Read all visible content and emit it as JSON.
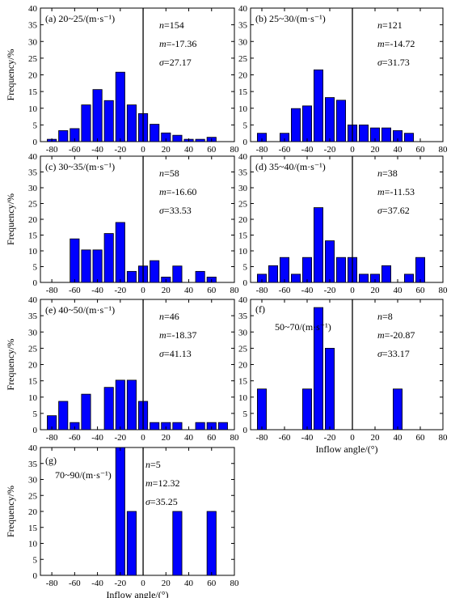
{
  "chart_data": [
    {
      "panel": "a",
      "type": "bar",
      "title": "(a) 20~25/(m·s⁻¹)",
      "stats": {
        "n": "154",
        "m": "-17.36",
        "sigma": "27.17"
      },
      "x": [
        -80,
        -70,
        -60,
        -50,
        -40,
        -30,
        -20,
        -10,
        0,
        10,
        20,
        30,
        40,
        50,
        60
      ],
      "values": [
        0.7,
        3.3,
        3.9,
        11.0,
        15.6,
        12.3,
        20.8,
        11.0,
        8.4,
        5.2,
        2.6,
        1.9,
        0.7,
        0.7,
        1.3
      ],
      "ylabel": "Frequency/%",
      "xlabel": "",
      "xlim": [
        -90,
        80
      ],
      "ylim": [
        0,
        40
      ],
      "xticks": [
        -80,
        -60,
        -40,
        -20,
        0,
        20,
        40,
        60,
        80
      ],
      "yticks": [
        0,
        5,
        10,
        15,
        20,
        25,
        30,
        35,
        40
      ]
    },
    {
      "panel": "b",
      "type": "bar",
      "title": "(b) 25~30/(m·s⁻¹)",
      "stats": {
        "n": "121",
        "m": "-14.72",
        "sigma": "31.73"
      },
      "x": [
        -80,
        -60,
        -50,
        -40,
        -30,
        -20,
        -10,
        0,
        10,
        20,
        30,
        40,
        50
      ],
      "values": [
        2.5,
        2.5,
        9.9,
        10.7,
        21.5,
        13.2,
        12.4,
        5.0,
        5.0,
        4.1,
        4.1,
        3.3,
        2.5
      ],
      "ylabel": "",
      "xlabel": "",
      "xlim": [
        -90,
        80
      ],
      "ylim": [
        0,
        40
      ],
      "xticks": [
        -80,
        -60,
        -40,
        -20,
        0,
        20,
        40,
        60,
        80
      ],
      "yticks": [
        0,
        5,
        10,
        15,
        20,
        25,
        30,
        35,
        40
      ]
    },
    {
      "panel": "c",
      "type": "bar",
      "title": "(c) 30~35/(m·s⁻¹)",
      "stats": {
        "n": "58",
        "m": "-16.60",
        "sigma": "33.53"
      },
      "x": [
        -60,
        -50,
        -40,
        -30,
        -20,
        -10,
        0,
        10,
        20,
        30,
        50,
        60
      ],
      "values": [
        13.8,
        10.3,
        10.3,
        15.5,
        19.0,
        3.5,
        5.2,
        6.9,
        1.7,
        5.2,
        3.5,
        1.7
      ],
      "ylabel": "Frequency/%",
      "xlabel": "",
      "xlim": [
        -90,
        80
      ],
      "ylim": [
        0,
        40
      ],
      "xticks": [
        -80,
        -60,
        -40,
        -20,
        0,
        20,
        40,
        60,
        80
      ],
      "yticks": [
        0,
        5,
        10,
        15,
        20,
        25,
        30,
        35,
        40
      ]
    },
    {
      "panel": "d",
      "type": "bar",
      "title": "(d) 35~40/(m·s⁻¹)",
      "stats": {
        "n": "38",
        "m": "-11.53",
        "sigma": "37.62"
      },
      "x": [
        -80,
        -70,
        -60,
        -50,
        -40,
        -30,
        -20,
        -10,
        0,
        10,
        20,
        30,
        50,
        60
      ],
      "values": [
        2.6,
        5.3,
        7.9,
        2.6,
        7.9,
        23.7,
        13.2,
        7.9,
        7.9,
        2.6,
        2.6,
        5.3,
        2.6,
        7.9
      ],
      "ylabel": "",
      "xlabel": "",
      "xlim": [
        -90,
        80
      ],
      "ylim": [
        0,
        40
      ],
      "xticks": [
        -80,
        -60,
        -40,
        -20,
        0,
        20,
        40,
        60,
        80
      ],
      "yticks": [
        0,
        5,
        10,
        15,
        20,
        25,
        30,
        35,
        40
      ]
    },
    {
      "panel": "e",
      "type": "bar",
      "title": "(e) 40~50/(m·s⁻¹)",
      "stats": {
        "n": "46",
        "m": "-18.37",
        "sigma": "41.13"
      },
      "x": [
        -80,
        -70,
        -60,
        -50,
        -30,
        -20,
        -10,
        0,
        10,
        20,
        30,
        50,
        60,
        70
      ],
      "values": [
        4.3,
        8.7,
        2.2,
        10.9,
        13.0,
        15.2,
        15.2,
        8.7,
        2.2,
        2.2,
        2.2,
        2.2,
        2.2,
        2.2
      ],
      "ylabel": "Frequency/%",
      "xlabel": "",
      "xlim": [
        -90,
        80
      ],
      "ylim": [
        0,
        40
      ],
      "xticks": [
        -80,
        -60,
        -40,
        -20,
        0,
        20,
        40,
        60,
        80
      ],
      "yticks": [
        0,
        5,
        10,
        15,
        20,
        25,
        30,
        35,
        40
      ]
    },
    {
      "panel": "f",
      "type": "bar",
      "title": "(f)",
      "title2": "50~70/(m·s⁻¹)",
      "stats": {
        "n": "8",
        "m": "-20.87",
        "sigma": "33.17"
      },
      "x": [
        -80,
        -40,
        -30,
        -20,
        40
      ],
      "values": [
        12.5,
        12.5,
        37.5,
        25.0,
        12.5
      ],
      "ylabel": "",
      "xlabel": "Inflow angle/(°)",
      "xlim": [
        -90,
        80
      ],
      "ylim": [
        0,
        40
      ],
      "xticks": [
        -80,
        -60,
        -40,
        -20,
        0,
        20,
        40,
        60,
        80
      ],
      "yticks": [
        0,
        5,
        10,
        15,
        20,
        25,
        30,
        35,
        40
      ]
    },
    {
      "panel": "g",
      "type": "bar",
      "title": "(g)",
      "title2": "70~90/(m·s⁻¹)",
      "stats": {
        "n": "5",
        "m": "12.32",
        "sigma": "35.25"
      },
      "x": [
        -20,
        -10,
        30,
        60
      ],
      "values": [
        40,
        20,
        20,
        20
      ],
      "ylabel": "Frequency/%",
      "xlabel": "Inflow angle/(°)",
      "xlim": [
        -90,
        80
      ],
      "ylim": [
        0,
        40
      ],
      "xticks": [
        -80,
        -60,
        -40,
        -20,
        0,
        20,
        40,
        60,
        80
      ],
      "yticks": [
        0,
        5,
        10,
        15,
        20,
        25,
        30,
        35,
        40
      ]
    }
  ],
  "style": {
    "bar_fill": "#0000ff",
    "bar_stroke": "#000000",
    "axis_color": "#000000"
  }
}
